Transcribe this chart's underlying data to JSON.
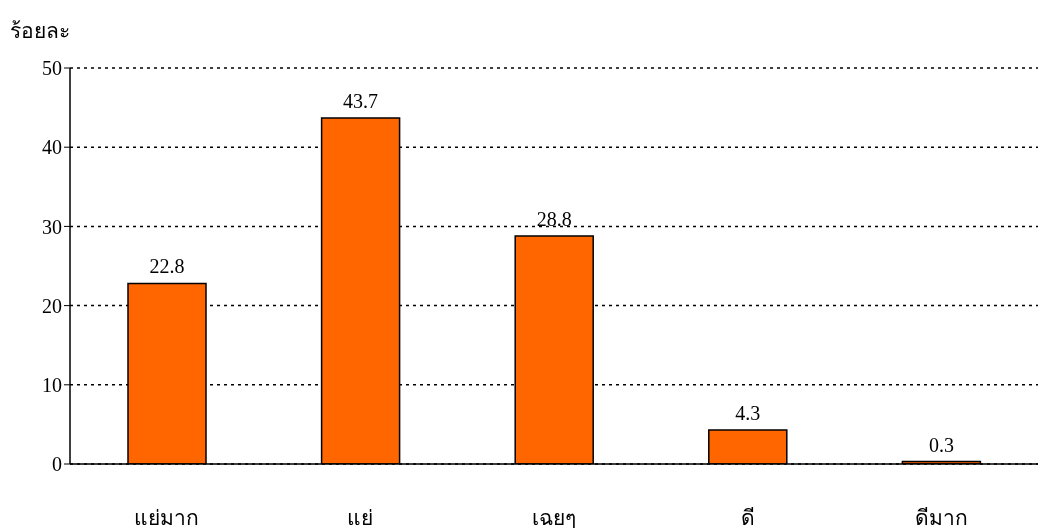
{
  "chart_data": {
    "type": "bar",
    "ylabel": "ร้อยละ",
    "categories": [
      "แย่มาก",
      "แย่",
      "เฉยๆ",
      "ดี",
      "ดีมาก"
    ],
    "values": [
      22.8,
      43.7,
      28.8,
      4.3,
      0.3
    ],
    "color": "#ff6600",
    "ylim": [
      0,
      50
    ],
    "yticks": [
      0,
      10,
      20,
      30,
      40,
      50
    ],
    "grid": "y",
    "line_style": "dotted",
    "data_labels": true
  }
}
